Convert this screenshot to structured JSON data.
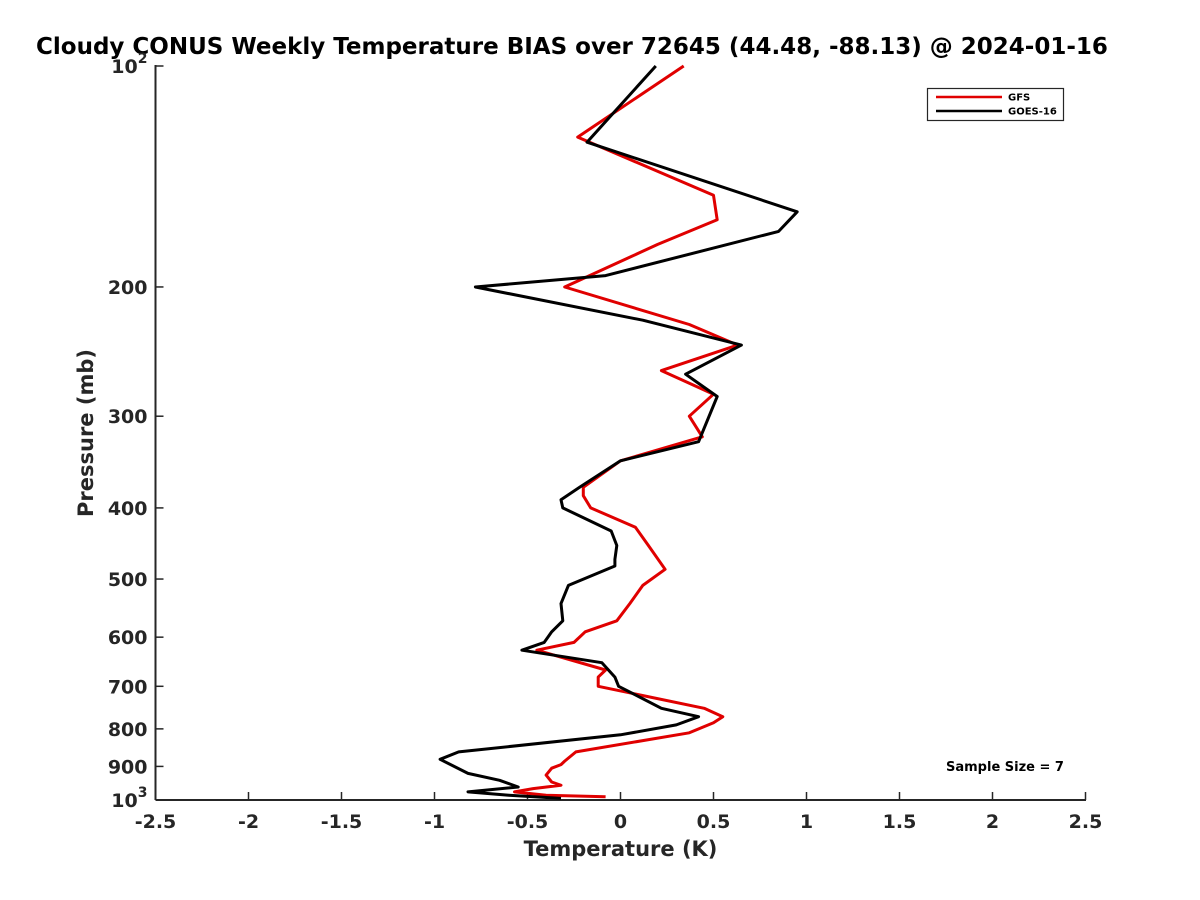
{
  "chart_data": {
    "type": "line",
    "title": "Cloudy CONUS Weekly Temperature BIAS over 72645 (44.48, -88.13) @ 2024-01-16",
    "xlabel": "Temperature (K)",
    "ylabel": "Pressure (mb)",
    "xlim": [
      -2.5,
      2.5
    ],
    "ylim": [
      1000,
      100
    ],
    "y_scale": "log",
    "y_reversed": true,
    "grid": false,
    "legend_position": "top-right",
    "x_ticks": [
      "-2.5",
      "-2",
      "-1.5",
      "-1",
      "-0.5",
      "0",
      "0.5",
      "1",
      "1.5",
      "2",
      "2.5"
    ],
    "y_ticks": [
      {
        "value": 100,
        "base": "10",
        "exp": "2"
      },
      {
        "value": 200,
        "base": "200",
        "exp": ""
      },
      {
        "value": 300,
        "base": "300",
        "exp": ""
      },
      {
        "value": 400,
        "base": "400",
        "exp": ""
      },
      {
        "value": 500,
        "base": "500",
        "exp": ""
      },
      {
        "value": 600,
        "base": "600",
        "exp": ""
      },
      {
        "value": 700,
        "base": "700",
        "exp": ""
      },
      {
        "value": 800,
        "base": "800",
        "exp": ""
      },
      {
        "value": 900,
        "base": "900",
        "exp": ""
      },
      {
        "value": 1000,
        "base": "10",
        "exp": "3"
      }
    ],
    "annotation": "Sample Size = 7",
    "series": [
      {
        "name": "GFS",
        "color": "#e00000",
        "points": [
          [
            0.34,
            100
          ],
          [
            -0.23,
            125
          ],
          [
            0.5,
            150
          ],
          [
            0.52,
            162
          ],
          [
            0.2,
            175
          ],
          [
            -0.3,
            200
          ],
          [
            0.37,
            225
          ],
          [
            0.63,
            240
          ],
          [
            0.22,
            260
          ],
          [
            0.5,
            280
          ],
          [
            0.37,
            300
          ],
          [
            0.44,
            320
          ],
          [
            0.0,
            345
          ],
          [
            -0.2,
            375
          ],
          [
            -0.2,
            385
          ],
          [
            -0.16,
            400
          ],
          [
            0.08,
            425
          ],
          [
            0.15,
            450
          ],
          [
            0.24,
            485
          ],
          [
            0.12,
            510
          ],
          [
            0.05,
            540
          ],
          [
            -0.02,
            570
          ],
          [
            -0.19,
            590
          ],
          [
            -0.25,
            610
          ],
          [
            -0.45,
            625
          ],
          [
            -0.08,
            665
          ],
          [
            -0.12,
            680
          ],
          [
            -0.12,
            700
          ],
          [
            0.45,
            750
          ],
          [
            0.55,
            770
          ],
          [
            0.5,
            785
          ],
          [
            0.37,
            810
          ],
          [
            -0.24,
            860
          ],
          [
            -0.3,
            885
          ],
          [
            -0.32,
            895
          ],
          [
            -0.37,
            905
          ],
          [
            -0.4,
            925
          ],
          [
            -0.37,
            945
          ],
          [
            -0.32,
            955
          ],
          [
            -0.47,
            965
          ],
          [
            -0.57,
            975
          ],
          [
            -0.4,
            985
          ],
          [
            -0.08,
            990
          ]
        ]
      },
      {
        "name": "GOES-16",
        "color": "#000000",
        "points": [
          [
            0.19,
            100
          ],
          [
            -0.18,
            127
          ],
          [
            0.95,
            158
          ],
          [
            0.85,
            168
          ],
          [
            -0.08,
            193
          ],
          [
            -0.78,
            200
          ],
          [
            0.12,
            222
          ],
          [
            0.65,
            240
          ],
          [
            0.35,
            263
          ],
          [
            0.52,
            282
          ],
          [
            0.42,
            325
          ],
          [
            0.0,
            345
          ],
          [
            -0.22,
            375
          ],
          [
            -0.32,
            390
          ],
          [
            -0.31,
            400
          ],
          [
            -0.05,
            430
          ],
          [
            -0.02,
            450
          ],
          [
            -0.03,
            470
          ],
          [
            -0.03,
            480
          ],
          [
            -0.28,
            510
          ],
          [
            -0.32,
            540
          ],
          [
            -0.31,
            570
          ],
          [
            -0.37,
            590
          ],
          [
            -0.41,
            610
          ],
          [
            -0.53,
            625
          ],
          [
            -0.1,
            650
          ],
          [
            -0.03,
            680
          ],
          [
            -0.01,
            700
          ],
          [
            0.22,
            750
          ],
          [
            0.42,
            770
          ],
          [
            0.3,
            790
          ],
          [
            0.0,
            815
          ],
          [
            -0.87,
            860
          ],
          [
            -0.97,
            880
          ],
          [
            -0.82,
            920
          ],
          [
            -0.65,
            940
          ],
          [
            -0.55,
            960
          ],
          [
            -0.82,
            975
          ],
          [
            -0.6,
            985
          ],
          [
            -0.32,
            995
          ]
        ]
      }
    ]
  }
}
